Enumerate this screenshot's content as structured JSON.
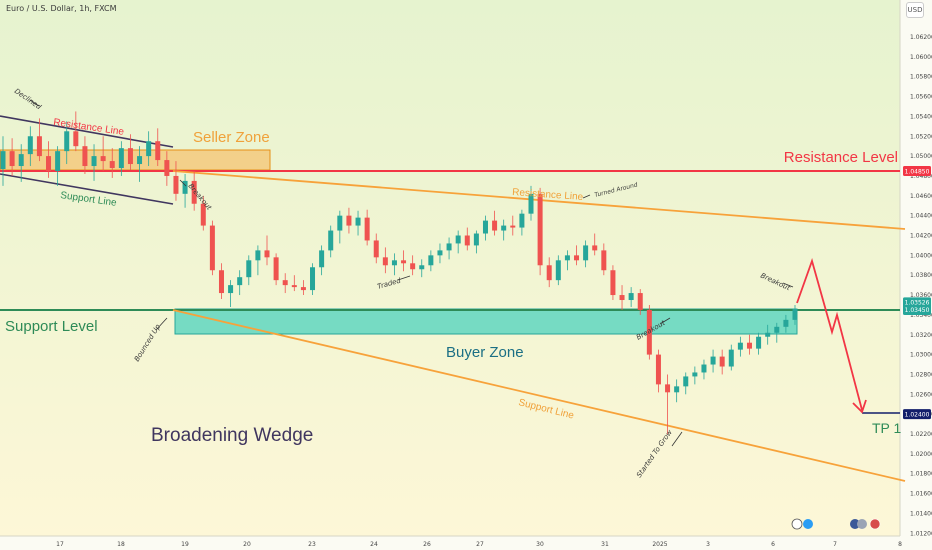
{
  "header": {
    "title": "Euro / U.S. Dollar, 1h, FXCM"
  },
  "currency_label": "USD",
  "chart_data": {
    "type": "candlestick",
    "title": "",
    "price_axis": {
      "ylim": [
        1.01,
        1.064
      ],
      "ticks": [
        "1.06200",
        "1.06000",
        "1.05800",
        "1.05600",
        "1.05400",
        "1.05200",
        "1.05000",
        "1.04800",
        "1.04600",
        "1.04400",
        "1.04200",
        "1.04000",
        "1.03800",
        "1.03600",
        "1.03400",
        "1.03200",
        "1.03000",
        "1.02800",
        "1.02600",
        "1.02400",
        "1.02200",
        "1.02000",
        "1.01800",
        "1.01600",
        "1.01400",
        "1.01200"
      ]
    },
    "time_axis": {
      "ticks": [
        "17",
        "18",
        "19",
        "20",
        "23",
        "24",
        "26",
        "27",
        "30",
        "31",
        "2025",
        "3",
        "6",
        "7",
        "8"
      ]
    },
    "price_labels": [
      {
        "value": 1.0485,
        "text": "1.04850",
        "color": "#f23645"
      },
      {
        "value": 1.03526,
        "text": "1.03526",
        "color": "#26a69a"
      },
      {
        "value": 1.0345,
        "text": "1.03450",
        "color": "#26a69a"
      },
      {
        "value": 1.024,
        "text": "1.02400",
        "color": "#131f6b"
      }
    ],
    "candles": [
      [
        1.0487,
        1.052,
        1.047,
        1.0505
      ],
      [
        1.0505,
        1.0518,
        1.048,
        1.049
      ],
      [
        1.049,
        1.0512,
        1.0474,
        1.0502
      ],
      [
        1.0502,
        1.053,
        1.049,
        1.052
      ],
      [
        1.052,
        1.0538,
        1.0495,
        1.05
      ],
      [
        1.05,
        1.0515,
        1.0478,
        1.0485
      ],
      [
        1.0485,
        1.051,
        1.047,
        1.0505
      ],
      [
        1.0505,
        1.0535,
        1.0492,
        1.0525
      ],
      [
        1.0525,
        1.0545,
        1.0505,
        1.051
      ],
      [
        1.051,
        1.052,
        1.0482,
        1.049
      ],
      [
        1.049,
        1.0512,
        1.0475,
        1.05
      ],
      [
        1.05,
        1.052,
        1.0485,
        1.0495
      ],
      [
        1.0495,
        1.0508,
        1.0478,
        1.0488
      ],
      [
        1.0488,
        1.0515,
        1.048,
        1.0508
      ],
      [
        1.0508,
        1.0522,
        1.0486,
        1.0492
      ],
      [
        1.0492,
        1.051,
        1.0474,
        1.05
      ],
      [
        1.05,
        1.0525,
        1.049,
        1.0515
      ],
      [
        1.0515,
        1.0528,
        1.049,
        1.0496
      ],
      [
        1.0496,
        1.0505,
        1.047,
        1.048
      ],
      [
        1.048,
        1.0495,
        1.0455,
        1.0462
      ],
      [
        1.0462,
        1.0482,
        1.0448,
        1.0475
      ],
      [
        1.0475,
        1.0485,
        1.0445,
        1.0452
      ],
      [
        1.0452,
        1.046,
        1.0425,
        1.043
      ],
      [
        1.043,
        1.0435,
        1.038,
        1.0385
      ],
      [
        1.0385,
        1.0392,
        1.0356,
        1.0362
      ],
      [
        1.0362,
        1.0375,
        1.0348,
        1.037
      ],
      [
        1.037,
        1.0385,
        1.036,
        1.0378
      ],
      [
        1.0378,
        1.04,
        1.037,
        1.0395
      ],
      [
        1.0395,
        1.041,
        1.038,
        1.0405
      ],
      [
        1.0405,
        1.042,
        1.039,
        1.0398
      ],
      [
        1.0398,
        1.0402,
        1.037,
        1.0375
      ],
      [
        1.0375,
        1.0382,
        1.0362,
        1.037
      ],
      [
        1.037,
        1.038,
        1.0364,
        1.0368
      ],
      [
        1.0368,
        1.0375,
        1.036,
        1.0365
      ],
      [
        1.0365,
        1.0392,
        1.036,
        1.0388
      ],
      [
        1.0388,
        1.041,
        1.038,
        1.0405
      ],
      [
        1.0405,
        1.043,
        1.0398,
        1.0425
      ],
      [
        1.0425,
        1.0445,
        1.0412,
        1.044
      ],
      [
        1.044,
        1.0448,
        1.0422,
        1.043
      ],
      [
        1.043,
        1.0445,
        1.042,
        1.0438
      ],
      [
        1.0438,
        1.0446,
        1.041,
        1.0415
      ],
      [
        1.0415,
        1.0422,
        1.0392,
        1.0398
      ],
      [
        1.0398,
        1.0408,
        1.0382,
        1.039
      ],
      [
        1.039,
        1.0402,
        1.038,
        1.0395
      ],
      [
        1.0395,
        1.0405,
        1.0384,
        1.0392
      ],
      [
        1.0392,
        1.04,
        1.038,
        1.0386
      ],
      [
        1.0386,
        1.0396,
        1.0378,
        1.039
      ],
      [
        1.039,
        1.0405,
        1.0384,
        1.04
      ],
      [
        1.04,
        1.0412,
        1.0392,
        1.0405
      ],
      [
        1.0405,
        1.0418,
        1.0396,
        1.0412
      ],
      [
        1.0412,
        1.0425,
        1.0402,
        1.042
      ],
      [
        1.042,
        1.0428,
        1.0405,
        1.041
      ],
      [
        1.041,
        1.0425,
        1.0402,
        1.0422
      ],
      [
        1.0422,
        1.044,
        1.0415,
        1.0435
      ],
      [
        1.0435,
        1.0445,
        1.042,
        1.0425
      ],
      [
        1.0425,
        1.0436,
        1.0415,
        1.043
      ],
      [
        1.043,
        1.044,
        1.042,
        1.0428
      ],
      [
        1.0428,
        1.0446,
        1.042,
        1.0442
      ],
      [
        1.0442,
        1.047,
        1.0435,
        1.0462
      ],
      [
        1.0462,
        1.0468,
        1.038,
        1.039
      ],
      [
        1.039,
        1.0398,
        1.0368,
        1.0375
      ],
      [
        1.0375,
        1.04,
        1.037,
        1.0395
      ],
      [
        1.0395,
        1.0405,
        1.0385,
        1.04
      ],
      [
        1.04,
        1.041,
        1.039,
        1.0395
      ],
      [
        1.0395,
        1.0415,
        1.0388,
        1.041
      ],
      [
        1.041,
        1.0422,
        1.04,
        1.0405
      ],
      [
        1.0405,
        1.0412,
        1.038,
        1.0385
      ],
      [
        1.0385,
        1.039,
        1.0355,
        1.036
      ],
      [
        1.036,
        1.037,
        1.0345,
        1.0355
      ],
      [
        1.0355,
        1.0368,
        1.0348,
        1.0362
      ],
      [
        1.0362,
        1.0366,
        1.034,
        1.0345
      ],
      [
        1.0345,
        1.035,
        1.0295,
        1.03
      ],
      [
        1.03,
        1.0305,
        1.0262,
        1.027
      ],
      [
        1.027,
        1.028,
        1.022,
        1.0262
      ],
      [
        1.0262,
        1.0275,
        1.0252,
        1.0268
      ],
      [
        1.0268,
        1.0282,
        1.026,
        1.0278
      ],
      [
        1.0278,
        1.0288,
        1.027,
        1.0282
      ],
      [
        1.0282,
        1.0295,
        1.0275,
        1.029
      ],
      [
        1.029,
        1.0305,
        1.0282,
        1.0298
      ],
      [
        1.0298,
        1.0305,
        1.028,
        1.0288
      ],
      [
        1.0288,
        1.031,
        1.0284,
        1.0305
      ],
      [
        1.0305,
        1.0318,
        1.0298,
        1.0312
      ],
      [
        1.0312,
        1.032,
        1.03,
        1.0306
      ],
      [
        1.0306,
        1.0322,
        1.03,
        1.0318
      ],
      [
        1.0318,
        1.033,
        1.031,
        1.0322
      ],
      [
        1.0322,
        1.0332,
        1.0312,
        1.0328
      ],
      [
        1.0328,
        1.034,
        1.0322,
        1.0335
      ],
      [
        1.0335,
        1.035,
        1.033,
        1.0346
      ]
    ]
  },
  "annotations": {
    "declined": "Declined",
    "resistance_line_left": "Resistance Line",
    "support_line_left": "Support Line",
    "seller_zone": "Seller Zone",
    "breakout_left": "Breakout",
    "resistance_level": "Resistance Level",
    "resistance_line_mid": "Resistance Line",
    "turned_around": "Turned Around",
    "traded": "Traded",
    "support_level": "Support Level",
    "bounced_up": "Bounced Up",
    "buyer_zone": "Buyer Zone",
    "breakout_mid": "Breakout",
    "breakout_right": "Breakout",
    "support_line_right": "Support Line",
    "broadening_wedge": "Broadening Wedge",
    "started_to_grow": "Started To Grow",
    "tp1": "TP 1"
  },
  "colors": {
    "bg_top": "#e6f3cf",
    "bg_bottom": "#fdf7d7",
    "up_candle": "#26a69a",
    "down_candle": "#ef5350",
    "resistance_level": "#f23645",
    "support_level": "#2e8b57",
    "wedge_line": "#f7a23a",
    "channel_line": "#40365f",
    "buyer_zone": "#5fd6c0",
    "seller_zone": "#f7b250",
    "tp": "#131f6b",
    "forecast": "#f23645"
  }
}
